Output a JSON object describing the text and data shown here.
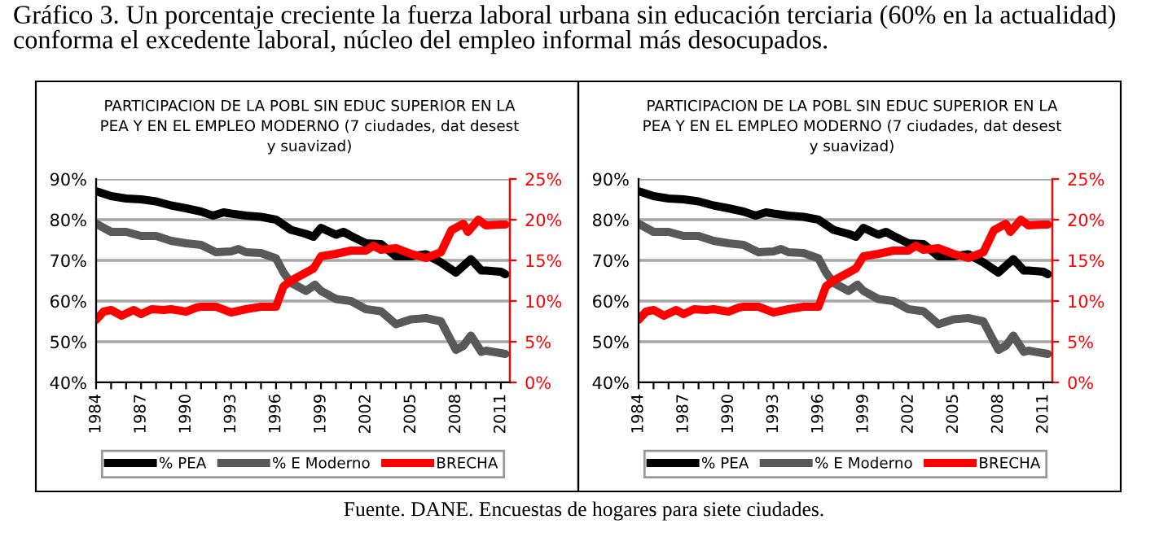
{
  "chart_data": [
    {
      "type": "line",
      "title": "PARTICIPACION DE LA POBL SIN EDUC SUPERIOR EN LA\nPEA Y EN EL EMPLEO MODERNO (7 ciudades, dat desest\ny suavizad)",
      "annotations": [
        "Gráfico 3. Un porcentaje creciente la fuerza laboral urbana sin educación terciaria (60% en la actualidad) conforma el excedente laboral, núcleo del empleo informal más desocupados."
      ],
      "series": [
        {
          "name": "% PEA",
          "color": "#000000",
          "x": [
            1984,
            1985,
            1986,
            1987,
            1988,
            1989,
            1990,
            1991,
            1991.8,
            1992.5,
            1993,
            1994,
            1995,
            1996,
            1997,
            1998,
            1998.5,
            1999,
            2000,
            2000.5,
            2001,
            2002,
            2003,
            2004,
            2005,
            2006,
            2007,
            2008,
            2009,
            2009.7,
            2010,
            2011,
            2011.3
          ],
          "values": [
            87,
            85.8,
            85.2,
            85,
            84.5,
            83.5,
            82.8,
            82,
            81,
            81.8,
            81.5,
            81,
            80.7,
            80,
            77.5,
            76.5,
            75.8,
            78,
            76.3,
            77,
            76,
            74.2,
            74,
            71,
            71,
            71.5,
            69.5,
            67,
            70.3,
            67.5,
            67.5,
            67.2,
            66.6
          ]
        },
        {
          "name": "% E Moderno",
          "color": "#595959",
          "x": [
            1984,
            1985,
            1986,
            1987,
            1988,
            1989,
            1990,
            1991,
            1992,
            1993,
            1993.5,
            1994,
            1995,
            1996,
            1996.5,
            1997,
            1998,
            1998.6,
            1999,
            2000,
            2001,
            2002,
            2003,
            2004,
            2005,
            2006,
            2007,
            2008,
            2008.5,
            2009,
            2009.7,
            2010,
            2011,
            2011.3
          ],
          "values": [
            79,
            77,
            77,
            76,
            76,
            74.8,
            74.2,
            73.8,
            72,
            72.2,
            72.8,
            72,
            71.8,
            70.5,
            67,
            64.5,
            62.5,
            64,
            62.5,
            60.5,
            60,
            58,
            57.5,
            54.3,
            55.5,
            55.8,
            55,
            48,
            49,
            51.5,
            47.5,
            47.8,
            47.2,
            47
          ]
        },
        {
          "name": "BRECHA",
          "color": "#ff0000",
          "axis": "y2",
          "x": [
            1984,
            1984.5,
            1985,
            1985.7,
            1986.5,
            1987,
            1987.7,
            1988.5,
            1989,
            1990,
            1990.7,
            1991,
            1992,
            1993,
            1994,
            1995,
            1996,
            1996.5,
            1997,
            1998,
            1998.5,
            1999,
            2000,
            2001,
            2002,
            2002.5,
            2003,
            2004,
            2005,
            2006,
            2007,
            2007.7,
            2008.5,
            2008.8,
            2009.5,
            2010,
            2011,
            2011.3
          ],
          "values": [
            7.7,
            8.7,
            8.9,
            8.2,
            8.9,
            8.4,
            9.0,
            8.9,
            9.0,
            8.7,
            9.2,
            9.3,
            9.3,
            8.6,
            9.0,
            9.3,
            9.3,
            11.8,
            12.5,
            13.5,
            14.0,
            15.5,
            15.8,
            16.2,
            16.2,
            16.8,
            16.3,
            16.5,
            15.8,
            15.3,
            16.0,
            18.7,
            19.5,
            18.5,
            20.0,
            19.3,
            19.4,
            19.4
          ]
        }
      ],
      "xlim": [
        1984,
        2011.6
      ],
      "xticks": [
        1984,
        {
          "value": 1985,
          "label": null
        },
        {
          "value": 1986,
          "label": null
        },
        1987,
        {
          "value": 1988,
          "label": null
        },
        {
          "value": 1989,
          "label": null
        },
        1990,
        {
          "value": 1991,
          "label": null
        },
        {
          "value": 1992,
          "label": null
        },
        1993,
        {
          "value": 1994,
          "label": null
        },
        {
          "value": 1995,
          "label": null
        },
        1996,
        {
          "value": 1997,
          "label": null
        },
        {
          "value": 1998,
          "label": null
        },
        1999,
        {
          "value": 2000,
          "label": null
        },
        {
          "value": 2001,
          "label": null
        },
        2002,
        {
          "value": 2003,
          "label": null
        },
        {
          "value": 2004,
          "label": null
        },
        2005,
        {
          "value": 2006,
          "label": null
        },
        {
          "value": 2007,
          "label": null
        },
        2008,
        {
          "value": 2009,
          "label": null
        },
        {
          "value": 2010,
          "label": null
        },
        2011
      ],
      "ylim": [
        40,
        90
      ],
      "yticks": [
        {
          "value": 40,
          "label": "40%"
        },
        {
          "value": 50,
          "label": "50%"
        },
        {
          "value": 60,
          "label": "60%"
        },
        {
          "value": 70,
          "label": "70%"
        },
        {
          "value": 80,
          "label": "80%"
        },
        {
          "value": 90,
          "label": "90%"
        }
      ],
      "y2lim": [
        0,
        25
      ],
      "y2ticks": [
        {
          "value": 0,
          "label": "0%"
        },
        {
          "value": 5,
          "label": "5%"
        },
        {
          "value": 10,
          "label": "10%"
        },
        {
          "value": 15,
          "label": "15%"
        },
        {
          "value": 20,
          "label": "20%"
        },
        {
          "value": 25,
          "label": "25%"
        }
      ],
      "grid": "y",
      "legend": "bottom",
      "marker": "none",
      "line_style": "solid"
    },
    {
      "type": "line",
      "title": "PARTICIPACION DE LA POBL SIN EDUC SUPERIOR EN LA\nPEA Y EN EL EMPLEO MODERNO (7 ciudades, dat desest\ny suavizad)",
      "annotations": [
        "Fuente. DANE. Encuestas de hogares para siete ciudades."
      ],
      "series": [
        {
          "name": "% PEA",
          "color": "#000000",
          "x": [
            1984,
            1985,
            1986,
            1987,
            1988,
            1989,
            1990,
            1991,
            1991.8,
            1992.5,
            1993,
            1994,
            1995,
            1996,
            1997,
            1998,
            1998.5,
            1999,
            2000,
            2000.5,
            2001,
            2002,
            2003,
            2004,
            2005,
            2006,
            2007,
            2008,
            2009,
            2009.7,
            2010,
            2011,
            2011.3
          ],
          "values": [
            87,
            85.8,
            85.2,
            85,
            84.5,
            83.5,
            82.8,
            82,
            81,
            81.8,
            81.5,
            81,
            80.7,
            80,
            77.5,
            76.5,
            75.8,
            78,
            76.3,
            77,
            76,
            74.2,
            74,
            71,
            71,
            71.5,
            69.5,
            67,
            70.3,
            67.5,
            67.5,
            67.2,
            66.6
          ]
        },
        {
          "name": "% E Moderno",
          "color": "#595959",
          "x": [
            1984,
            1985,
            1986,
            1987,
            1988,
            1989,
            1990,
            1991,
            1992,
            1993,
            1993.5,
            1994,
            1995,
            1996,
            1996.5,
            1997,
            1998,
            1998.6,
            1999,
            2000,
            2001,
            2002,
            2003,
            2004,
            2005,
            2006,
            2007,
            2008,
            2008.5,
            2009,
            2009.7,
            2010,
            2011,
            2011.3
          ],
          "values": [
            79,
            77,
            77,
            76,
            76,
            74.8,
            74.2,
            73.8,
            72,
            72.2,
            72.8,
            72,
            71.8,
            70.5,
            67,
            64.5,
            62.5,
            64,
            62.5,
            60.5,
            60,
            58,
            57.5,
            54.3,
            55.5,
            55.8,
            55,
            48,
            49,
            51.5,
            47.5,
            47.8,
            47.2,
            47
          ]
        },
        {
          "name": "BRECHA",
          "color": "#ff0000",
          "axis": "y2",
          "x": [
            1984,
            1984.5,
            1985,
            1985.7,
            1986.5,
            1987,
            1987.7,
            1988.5,
            1989,
            1990,
            1990.7,
            1991,
            1992,
            1993,
            1994,
            1995,
            1996,
            1996.5,
            1997,
            1998,
            1998.5,
            1999,
            2000,
            2001,
            2002,
            2002.5,
            2003,
            2004,
            2005,
            2006,
            2007,
            2007.7,
            2008.5,
            2008.8,
            2009.5,
            2010,
            2011,
            2011.3
          ],
          "values": [
            7.7,
            8.7,
            8.9,
            8.2,
            8.9,
            8.4,
            9.0,
            8.9,
            9.0,
            8.7,
            9.2,
            9.3,
            9.3,
            8.6,
            9.0,
            9.3,
            9.3,
            11.8,
            12.5,
            13.5,
            14.0,
            15.5,
            15.8,
            16.2,
            16.2,
            16.8,
            16.3,
            16.5,
            15.8,
            15.3,
            16.0,
            18.7,
            19.5,
            18.5,
            20.0,
            19.3,
            19.4,
            19.4
          ]
        }
      ],
      "xlim": [
        1984,
        2011.6
      ],
      "xticks": [
        1984,
        {
          "value": 1985,
          "label": null
        },
        {
          "value": 1986,
          "label": null
        },
        1987,
        {
          "value": 1988,
          "label": null
        },
        {
          "value": 1989,
          "label": null
        },
        1990,
        {
          "value": 1991,
          "label": null
        },
        {
          "value": 1992,
          "label": null
        },
        1993,
        {
          "value": 1994,
          "label": null
        },
        {
          "value": 1995,
          "label": null
        },
        1996,
        {
          "value": 1997,
          "label": null
        },
        {
          "value": 1998,
          "label": null
        },
        1999,
        {
          "value": 2000,
          "label": null
        },
        {
          "value": 2001,
          "label": null
        },
        2002,
        {
          "value": 2003,
          "label": null
        },
        {
          "value": 2004,
          "label": null
        },
        2005,
        {
          "value": 2006,
          "label": null
        },
        {
          "value": 2007,
          "label": null
        },
        2008,
        {
          "value": 2009,
          "label": null
        },
        {
          "value": 2010,
          "label": null
        },
        2011
      ],
      "ylim": [
        40,
        90
      ],
      "yticks": [
        {
          "value": 40,
          "label": "40%"
        },
        {
          "value": 50,
          "label": "50%"
        },
        {
          "value": 60,
          "label": "60%"
        },
        {
          "value": 70,
          "label": "70%"
        },
        {
          "value": 80,
          "label": "80%"
        },
        {
          "value": 90,
          "label": "90%"
        }
      ],
      "y2lim": [
        0,
        25
      ],
      "y2ticks": [
        {
          "value": 0,
          "label": "0%"
        },
        {
          "value": 5,
          "label": "5%"
        },
        {
          "value": 10,
          "label": "10%"
        },
        {
          "value": 15,
          "label": "15%"
        },
        {
          "value": 20,
          "label": "20%"
        },
        {
          "value": 25,
          "label": "25%"
        }
      ],
      "grid": "y",
      "legend": "bottom",
      "marker": "none",
      "line_style": "solid"
    }
  ]
}
